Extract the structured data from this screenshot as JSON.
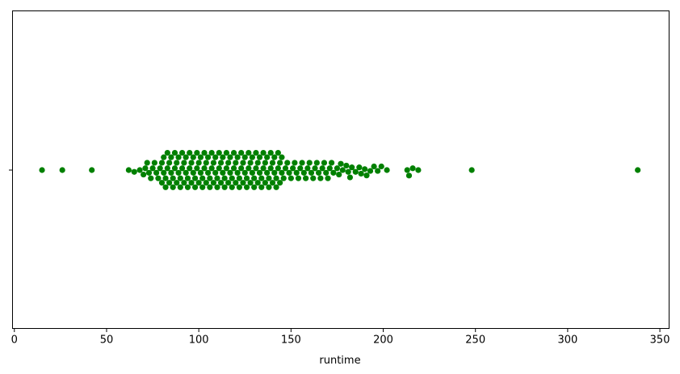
{
  "chart_data": {
    "type": "scatter",
    "subtype": "swarm",
    "title": "",
    "xlabel": "runtime",
    "ylabel": "",
    "xlim": [
      -1,
      355
    ],
    "x_ticks": [
      0,
      50,
      100,
      150,
      200,
      250,
      300,
      350
    ],
    "x_tick_labels": [
      "0",
      "50",
      "100",
      "150",
      "200",
      "250",
      "300",
      "350"
    ],
    "grid": false,
    "legend": "none",
    "point_color": "#008000",
    "series": [
      {
        "values": [
          15,
          26,
          42,
          62,
          65,
          68,
          70,
          71,
          72,
          73,
          74,
          75,
          76,
          77,
          78,
          79,
          80,
          80,
          81,
          81,
          82,
          82,
          83,
          83,
          84,
          84,
          85,
          85,
          86,
          86,
          87,
          87,
          88,
          88,
          89,
          89,
          90,
          90,
          91,
          91,
          92,
          92,
          93,
          93,
          94,
          94,
          95,
          95,
          96,
          96,
          97,
          97,
          98,
          98,
          99,
          99,
          100,
          100,
          101,
          101,
          102,
          102,
          103,
          103,
          104,
          104,
          105,
          105,
          106,
          106,
          107,
          107,
          108,
          108,
          109,
          109,
          110,
          110,
          111,
          111,
          112,
          112,
          113,
          113,
          114,
          114,
          115,
          115,
          116,
          116,
          117,
          117,
          118,
          118,
          119,
          119,
          120,
          120,
          121,
          121,
          122,
          122,
          123,
          123,
          124,
          124,
          125,
          125,
          126,
          126,
          127,
          127,
          128,
          128,
          129,
          129,
          130,
          130,
          131,
          131,
          132,
          132,
          133,
          133,
          134,
          134,
          135,
          135,
          136,
          136,
          137,
          137,
          138,
          138,
          139,
          139,
          140,
          140,
          141,
          141,
          142,
          142,
          143,
          143,
          144,
          144,
          145,
          145,
          146,
          147,
          148,
          149,
          150,
          151,
          152,
          153,
          154,
          155,
          156,
          157,
          158,
          159,
          160,
          161,
          162,
          163,
          164,
          165,
          166,
          167,
          168,
          169,
          170,
          171,
          172,
          173,
          175,
          176,
          177,
          178,
          180,
          181,
          182,
          183,
          185,
          187,
          188,
          190,
          191,
          193,
          195,
          197,
          199,
          202,
          213,
          214,
          216,
          219,
          248,
          338
        ]
      }
    ]
  }
}
